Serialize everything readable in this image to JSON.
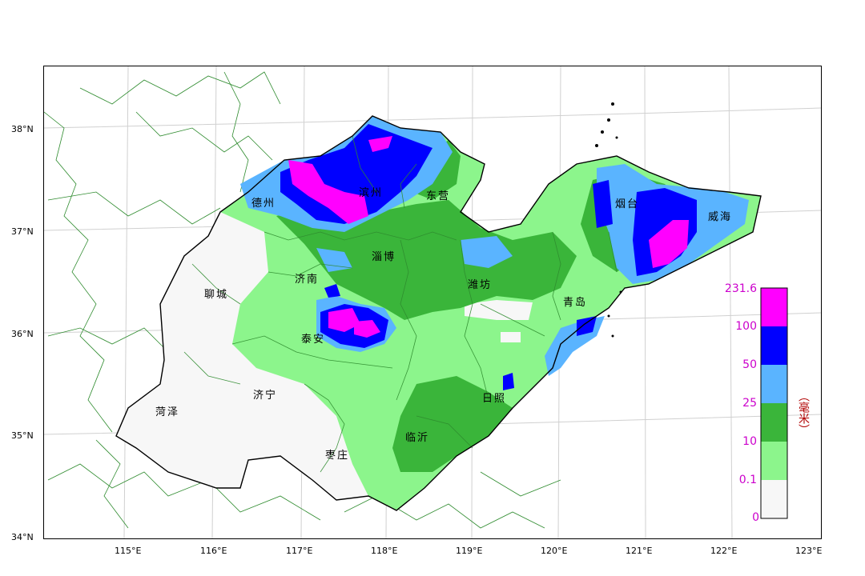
{
  "lat_labels": [
    "38°N",
    "37°N",
    "36°N",
    "35°N",
    "34°N"
  ],
  "lon_labels": [
    "115°E",
    "116°E",
    "117°E",
    "118°E",
    "119°E",
    "120°E",
    "121°E",
    "122°E",
    "123°E"
  ],
  "cities": [
    {
      "id": "dezhou",
      "name": "德州"
    },
    {
      "id": "binzhou",
      "name": "滨州"
    },
    {
      "id": "dongying",
      "name": "东营"
    },
    {
      "id": "yantai",
      "name": "烟台"
    },
    {
      "id": "weihai",
      "name": "威海"
    },
    {
      "id": "zibo",
      "name": "淄博"
    },
    {
      "id": "jinan",
      "name": "济南"
    },
    {
      "id": "liaocheng",
      "name": "聊城"
    },
    {
      "id": "weifang",
      "name": "潍坊"
    },
    {
      "id": "qingdao",
      "name": "青岛"
    },
    {
      "id": "taian",
      "name": "泰安"
    },
    {
      "id": "jining",
      "name": "济宁"
    },
    {
      "id": "heze",
      "name": "菏泽"
    },
    {
      "id": "rizhao",
      "name": "日照"
    },
    {
      "id": "linyi",
      "name": "临沂"
    },
    {
      "id": "zaozhuang",
      "name": "枣庄"
    }
  ],
  "legend": {
    "unit": "（毫米）",
    "max_label": "231.6",
    "bins": [
      {
        "from": "0",
        "to": "0.1",
        "color": "#f7f7f7"
      },
      {
        "from": "0.1",
        "to": "10",
        "color": "#8cf58c"
      },
      {
        "from": "10",
        "to": "25",
        "color": "#3ab53a"
      },
      {
        "from": "25",
        "to": "50",
        "color": "#5ab4ff"
      },
      {
        "from": "50",
        "to": "100",
        "color": "#0000ff"
      },
      {
        "from": "100",
        "to": "231.6",
        "color": "#ff00ff"
      }
    ],
    "tick_labels": [
      "231.6",
      "100",
      "50",
      "25",
      "10",
      "0.1",
      "0"
    ]
  },
  "colors": {
    "county_boundary": "#2e8b2e",
    "province_outline": "#000000",
    "grid": "#cccccc"
  }
}
